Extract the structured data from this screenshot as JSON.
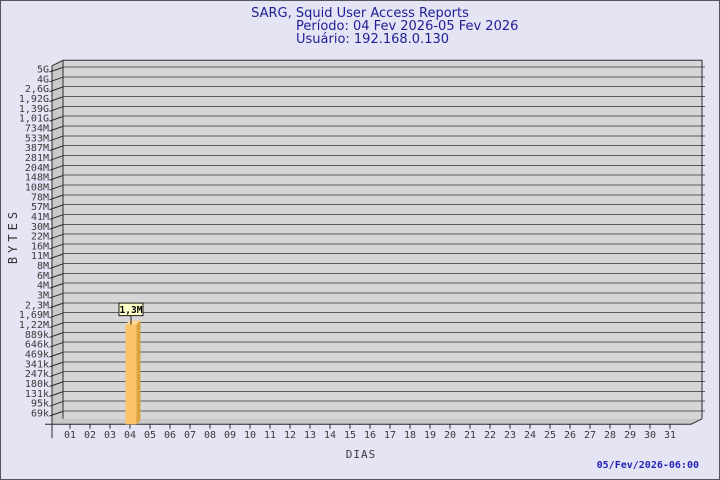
{
  "page": {
    "background": "#E4E4F4",
    "border_color": "#55555E"
  },
  "header": {
    "title": "SARG, Squid User Access Reports",
    "period_line": "Período: 04 Fev 2026-05 Fev 2026",
    "user_line": "Usuário: 192.168.0.130",
    "text_color": "#1E1E96"
  },
  "footer": {
    "timestamp": "05/Fev/2026-06:00",
    "color": "#2323BB"
  },
  "chart_data": {
    "type": "bar",
    "title": "SARG, Squid User Access Reports",
    "subtitle": "Período: 04 Fev 2026-05 Fev 2026",
    "user": "Usuário: 192.168.0.130",
    "xlabel": "DIAS",
    "ylabel": "BYTES",
    "y_scale": "log",
    "grid": true,
    "style": "3d-bar",
    "y_tick_labels": [
      "5G",
      "4G",
      "2,6G",
      "1,92G",
      "1,39G",
      "1,01G",
      "734M",
      "533M",
      "387M",
      "281M",
      "204M",
      "148M",
      "108M",
      "78M",
      "57M",
      "41M",
      "30M",
      "22M",
      "16M",
      "11M",
      "8M",
      "6M",
      "4M",
      "3M",
      "2,3M",
      "1,69M",
      "1,22M",
      "889k",
      "646k",
      "469k",
      "341k",
      "247k",
      "180k",
      "131k",
      "95k",
      "69k"
    ],
    "x_tick_labels": [
      "01",
      "02",
      "03",
      "04",
      "05",
      "06",
      "07",
      "08",
      "09",
      "10",
      "11",
      "12",
      "13",
      "14",
      "15",
      "16",
      "17",
      "18",
      "19",
      "20",
      "21",
      "22",
      "23",
      "24",
      "25",
      "26",
      "27",
      "28",
      "29",
      "30",
      "31"
    ],
    "bars": [
      {
        "x": "04",
        "label": "1,3M",
        "value": 1300000
      }
    ],
    "colors": {
      "bar_front": "#FCC469",
      "bar_side": "#D9A43F",
      "bar_top": "#FDD78E",
      "annotation_bg": "#FFFFC8",
      "annotation_border": "#1A1A1A",
      "plot_bg": "#D6D6D6",
      "wall": "#C9C9C9",
      "grid_line": "#5A5A5A",
      "axis_line": "#2A2A2A",
      "tick_text": "#3A3A3A"
    }
  }
}
